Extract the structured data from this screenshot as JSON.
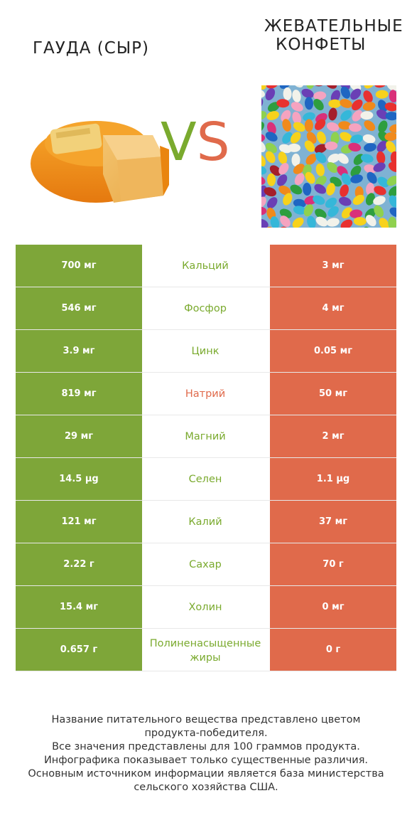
{
  "header": {
    "left_title": "ГАУДА (СЫР)",
    "right_title_line1": "ЖЕВАТЕЛЬНЫЕ",
    "right_title_line2": "КОНФЕТЫ",
    "vs_v": "V",
    "vs_s": "S"
  },
  "colors": {
    "green": "#7ea639",
    "red": "#e06a4b"
  },
  "rows": [
    {
      "left": "700 мг",
      "name": "Кальций",
      "right": "3 мг",
      "winner": "green"
    },
    {
      "left": "546 мг",
      "name": "Фосфор",
      "right": "4 мг",
      "winner": "green"
    },
    {
      "left": "3.9 мг",
      "name": "Цинк",
      "right": "0.05 мг",
      "winner": "green"
    },
    {
      "left": "819 мг",
      "name": "Натрий",
      "right": "50 мг",
      "winner": "red"
    },
    {
      "left": "29 мг",
      "name": "Магний",
      "right": "2 мг",
      "winner": "green"
    },
    {
      "left": "14.5 µg",
      "name": "Селен",
      "right": "1.1 µg",
      "winner": "green"
    },
    {
      "left": "121 мг",
      "name": "Калий",
      "right": "37 мг",
      "winner": "green"
    },
    {
      "left": "2.22 г",
      "name": "Сахар",
      "right": "70 г",
      "winner": "green"
    },
    {
      "left": "15.4 мг",
      "name": "Холин",
      "right": "0 мг",
      "winner": "green"
    },
    {
      "left": "0.657 г",
      "name": "Полиненасыщенные жиры",
      "right": "0 г",
      "winner": "green"
    }
  ],
  "footer": {
    "line1": "Название питательного вещества представлено цветом",
    "line2": "продукта-победителя.",
    "line3": "Все значения представлены для 100 граммов продукта.",
    "line4": "Инфографика показывает только существенные различия.",
    "line5": "Основным источником информации является база министерства",
    "line6": "сельского хозяйства США."
  }
}
